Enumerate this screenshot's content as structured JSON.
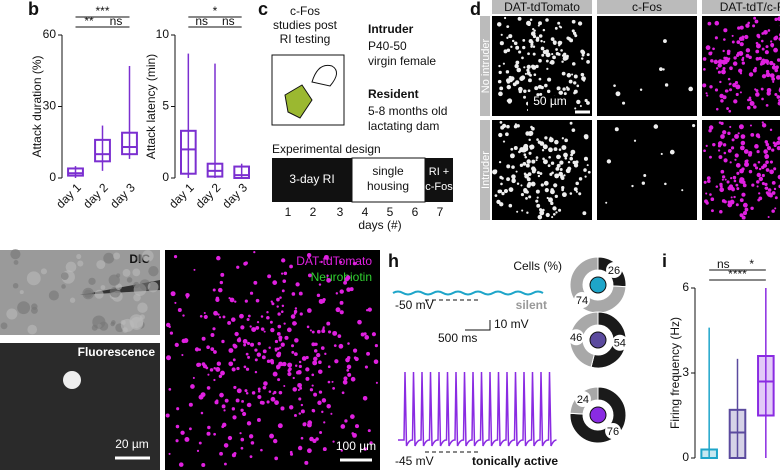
{
  "panel_labels": {
    "b": "b",
    "c": "c",
    "d": "d",
    "g": "g",
    "h": "h",
    "i": "i"
  },
  "chart_data": [
    {
      "type": "box",
      "y_label": "Attack duration (%)",
      "categories": [
        "day 1",
        "day 2",
        "day 3"
      ],
      "color": "#7b2fd0",
      "boxes": [
        {
          "min": 0,
          "q1": 1,
          "median": 2,
          "q3": 4,
          "max": 5
        },
        {
          "min": 3,
          "q1": 7,
          "median": 10,
          "q3": 16,
          "max": 22
        },
        {
          "min": 8,
          "q1": 10,
          "median": 13,
          "q3": 19,
          "max": 47
        }
      ],
      "ylim": [
        0,
        60
      ],
      "yticks": [
        0,
        30,
        60
      ],
      "annotations": [
        "***",
        "**",
        "ns"
      ]
    },
    {
      "type": "box",
      "y_label": "Attack latency (min)",
      "categories": [
        "day 1",
        "day 2",
        "day 3"
      ],
      "color": "#7b2fd0",
      "boxes": [
        {
          "min": 0,
          "q1": 0.3,
          "median": 2,
          "q3": 3.3,
          "max": 8.7
        },
        {
          "min": 0,
          "q1": 0.1,
          "median": 0.5,
          "q3": 1,
          "max": 8
        },
        {
          "min": 0,
          "q1": 0,
          "median": 0.2,
          "q3": 0.8,
          "max": 1
        }
      ],
      "ylim": [
        0,
        10
      ],
      "yticks": [
        0,
        5,
        10
      ],
      "annotations": [
        "*",
        "ns",
        "ns"
      ]
    },
    {
      "type": "box",
      "y_label": "Firing frequency (Hz)",
      "categories": [
        null,
        null,
        null
      ],
      "colors": [
        "#1ea5c9",
        "#5b4a9e",
        "#8a2be2"
      ],
      "boxes": [
        {
          "min": 0,
          "q1": 0,
          "median": 0,
          "q3": 0.3,
          "max": 4.6
        },
        {
          "min": 0,
          "q1": 0,
          "median": 0.9,
          "q3": 1.7,
          "max": 3.5
        },
        {
          "min": 0,
          "q1": 1.5,
          "median": 2.7,
          "q3": 3.6,
          "max": 6
        }
      ],
      "ylim": [
        0,
        6
      ],
      "yticks": [
        0,
        3,
        6
      ],
      "annotations": [
        "ns",
        "*",
        "****"
      ]
    },
    {
      "type": "donut",
      "title": "Cells (%)",
      "colors": [
        "#1a1a1a",
        "#a8a8a8"
      ],
      "pies": [
        {
          "values": [
            26,
            74
          ]
        },
        {
          "values": [
            54,
            46
          ]
        },
        {
          "values": [
            76,
            24
          ]
        }
      ]
    }
  ],
  "panel_c": {
    "heading": [
      "c-Fos",
      "studies post",
      "RI testing"
    ],
    "intruder_title": "Intruder",
    "intruder_lines": [
      "P40-50",
      "virgin female"
    ],
    "resident_title": "Resident",
    "resident_lines": [
      "5-8 months old",
      "lactating dam"
    ],
    "design_title": "Experimental design",
    "phase_1": "3-day RI",
    "phase_2": [
      "single",
      "housing"
    ],
    "phase_3": [
      "RI +",
      "c-Fos"
    ],
    "days": [
      1,
      2,
      3,
      4,
      5,
      6,
      7
    ],
    "days_label": "days (#)"
  },
  "panel_d": {
    "columns": [
      "DAT-tdTomato",
      "c-Fos",
      "DAT-tdT/c-F"
    ],
    "rows": [
      "No intruder",
      "Intruder"
    ],
    "scale_bar": "50 µm"
  },
  "panel_a": {
    "top_label": "DIC",
    "bottom_label": "Fluorescence",
    "scale_bar": "20 µm"
  },
  "panel_g": {
    "labels": [
      "DAT-tdTomato",
      "Neurobiotin"
    ],
    "scale_bar": "100 µm"
  },
  "panel_h": {
    "silent_voltage": "-50 mV",
    "silent_label": "silent",
    "active_voltage": "-45 mV",
    "active_label": "tonically active",
    "scale_x": "500 ms",
    "scale_y": "10 mV"
  }
}
